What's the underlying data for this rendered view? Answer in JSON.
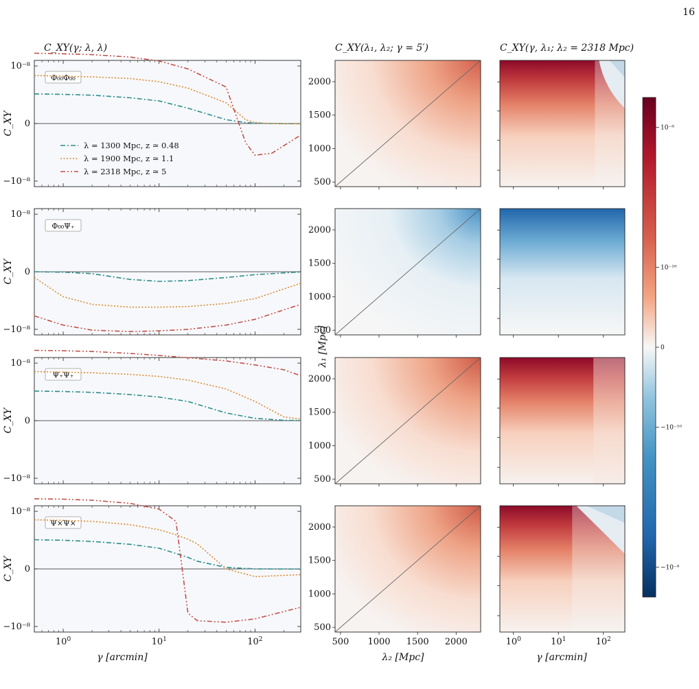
{
  "page_number": "16",
  "titles": {
    "left": "C_XY(γ; λ, λ)",
    "middle": "C_XY(λ₁, λ₂; γ = 5′)",
    "right": "C_XY(γ, λ₁; λ₂ = 2318 Mpc)"
  },
  "axes": {
    "left_ylabel": "C_XY",
    "middle_ylabel": "λ₁ [Mpc]",
    "left_xlabel": "γ [arcmin]",
    "middle_xlabel": "λ₂ [Mpc]",
    "right_xlabel": "γ [arcmin]"
  },
  "colorbar": {
    "ticks": [
      "10⁻⁸",
      "10⁻¹⁰",
      "0",
      "−10⁻¹⁰",
      "−10⁻⁸"
    ],
    "colormap": "RdBu_r (symlog)",
    "colors": {
      "top": "#67001f",
      "mid": "#f7f7f7",
      "bottom": "#053061"
    }
  },
  "legend": [
    {
      "label": "λ = 1300 Mpc, z ≃ 0.48",
      "color": "#2a8e8c",
      "style": "dash-dot"
    },
    {
      "label": "λ = 1900 Mpc, z ≃ 1.1",
      "color": "#d98a2b",
      "style": "dotted"
    },
    {
      "label": "λ = 2318 Mpc, z ≃ 5",
      "color": "#c2504a",
      "style": "dash-dot-dot"
    }
  ],
  "chart_data": [
    {
      "type": "line",
      "panel": "Φ00Φ00",
      "label": "Φ₀₀Φ₀₀",
      "xscale": "log",
      "xlim": [
        0.5,
        300
      ],
      "yscale": "symlog",
      "ytick_labels": [
        "10⁻⁸",
        "0",
        "−10⁻⁸"
      ],
      "x": [
        0.5,
        1,
        2,
        5,
        10,
        20,
        50,
        80,
        100,
        150,
        300
      ],
      "series": [
        {
          "name": "λ = 1300 Mpc, z ≃ 0.48",
          "values": [
            3.5e-10,
            3.3e-10,
            3e-10,
            2.2e-10,
            1.5e-10,
            8e-11,
            2e-11,
            5e-12,
            2e-12,
            0,
            -1e-12
          ]
        },
        {
          "name": "λ = 1900 Mpc, z ≃ 1.1",
          "values": [
            3.2e-09,
            2.9e-09,
            2.7e-09,
            2.2e-09,
            1.5e-09,
            7e-10,
            1.2e-10,
            2e-11,
            5e-12,
            0,
            -2e-12
          ]
        },
        {
          "name": "λ = 2318 Mpc, z ≃ 5",
          "values": [
            4.6e-08,
            4.3e-08,
            3.9e-08,
            2.9e-08,
            1.8e-08,
            7e-09,
            8e-10,
            -1e-10,
            -4.5e-10,
            -3.5e-10,
            -6e-11
          ]
        }
      ]
    },
    {
      "type": "line",
      "panel": "Φ00Ψ+",
      "label": "Φ₀₀Ψ₊",
      "xscale": "log",
      "xlim": [
        0.5,
        300
      ],
      "yscale": "symlog",
      "ytick_labels": [
        "10⁻⁸",
        "0",
        "−10⁻⁸"
      ],
      "x": [
        0.5,
        1,
        2,
        5,
        10,
        20,
        50,
        100,
        300
      ],
      "series": [
        {
          "name": "λ = 1300 Mpc, z ≃ 0.48",
          "values": [
            0,
            -2e-12,
            -1e-11,
            -4e-11,
            -5e-11,
            -4.6e-11,
            -3e-11,
            -1.5e-11,
            -1e-12
          ]
        },
        {
          "name": "λ = 1900 Mpc, z ≃ 1.1",
          "values": [
            -3e-11,
            -2e-10,
            -5e-10,
            -7e-10,
            -7e-10,
            -6.5e-10,
            -4.5e-10,
            -2.5e-10,
            -6e-11
          ]
        },
        {
          "name": "λ = 2318 Mpc, z ≃ 5",
          "values": [
            -2e-09,
            -6e-09,
            -1.1e-08,
            -1.3e-08,
            -1.2e-08,
            -1e-08,
            -6e-09,
            -3e-09,
            -5e-10
          ]
        }
      ]
    },
    {
      "type": "line",
      "panel": "Ψ+Ψ+",
      "label": "Ψ₊Ψ₊",
      "xscale": "log",
      "xlim": [
        0.5,
        300
      ],
      "yscale": "symlog",
      "ytick_labels": [
        "10⁻⁸",
        "0",
        "−10⁻⁸"
      ],
      "x": [
        0.5,
        1,
        2,
        5,
        10,
        20,
        50,
        100,
        200,
        300
      ],
      "series": [
        {
          "name": "λ = 1300 Mpc, z ≃ 0.48",
          "values": [
            3.5e-10,
            3.3e-10,
            3e-10,
            2.3e-10,
            1.7e-10,
            1e-10,
            4e-11,
            1.2e-11,
            2e-12,
            1e-12
          ]
        },
        {
          "name": "λ = 1900 Mpc, z ≃ 1.1",
          "values": [
            3.6e-09,
            3.4e-09,
            3.1e-09,
            2.6e-09,
            2e-09,
            1.3e-09,
            4.5e-10,
            1e-10,
            2e-11,
            8e-12
          ]
        },
        {
          "name": "λ = 2318 Mpc, z ≃ 5",
          "values": [
            4.6e-08,
            4.4e-08,
            4e-08,
            3.2e-08,
            2.5e-08,
            1.9e-08,
            1.3e-08,
            8e-09,
            4.5e-09,
            2.2e-09
          ]
        }
      ]
    },
    {
      "type": "line",
      "panel": "Ψ×Ψ×",
      "label": "Ψ×Ψ×",
      "xscale": "log",
      "xlim": [
        0.5,
        300
      ],
      "yscale": "symlog",
      "ytick_labels": [
        "10⁻⁸",
        "0",
        "−10⁻⁸"
      ],
      "x": [
        0.5,
        1,
        2,
        5,
        10,
        15,
        20,
        25,
        50,
        100,
        300
      ],
      "series": [
        {
          "name": "λ = 1300 Mpc, z ≃ 0.48",
          "values": [
            3.3e-10,
            3.1e-10,
            2.7e-10,
            1.9e-10,
            1.2e-10,
            8e-11,
            6e-11,
            4e-11,
            8e-12,
            0,
            -1e-12
          ]
        },
        {
          "name": "λ = 1900 Mpc, z ≃ 1.1",
          "values": [
            3.6e-09,
            3.4e-09,
            3e-09,
            2e-09,
            1.1e-09,
            6e-10,
            3.5e-10,
            2e-10,
            0,
            -4e-11,
            -3e-11
          ]
        },
        {
          "name": "λ = 2318 Mpc, z ≃ 5",
          "values": [
            4.5e-08,
            4.3e-08,
            3.8e-08,
            2.6e-08,
            1.3e-08,
            3e-09,
            -2e-09,
            -5e-09,
            -6e-09,
            -4e-09,
            -1e-09
          ]
        }
      ]
    },
    {
      "type": "heatmap",
      "panel": "middle",
      "title": "C_XY(λ₁, λ₂; γ = 5′)",
      "xlabel": "λ₂ [Mpc]",
      "ylabel": "λ₁ [Mpc]",
      "xlim": [
        430,
        2318
      ],
      "ylim": [
        430,
        2318
      ],
      "ticks": [
        500,
        1000,
        1500,
        2000
      ],
      "diagonal_line": true,
      "rows": [
        "Φ00Φ00",
        "Φ00Ψ+",
        "Ψ+Ψ+",
        "Ψ×Ψ×"
      ],
      "peak_value": [
        6e-09,
        -5e-10,
        1.2e-08,
        1e-08
      ]
    },
    {
      "type": "heatmap",
      "panel": "right",
      "title": "C_XY(γ, λ₁; λ₂ = 2318 Mpc)",
      "xlabel": "γ [arcmin]",
      "xscale": "log",
      "xlim": [
        0.5,
        300
      ],
      "ylim": [
        430,
        2318
      ],
      "rows": [
        "Φ00Φ00",
        "Φ00Ψ+",
        "Ψ+Ψ+",
        "Ψ×Ψ×"
      ],
      "peak_value": [
        4.6e-08,
        -1.3e-08,
        4.6e-08,
        4.5e-08
      ]
    }
  ]
}
